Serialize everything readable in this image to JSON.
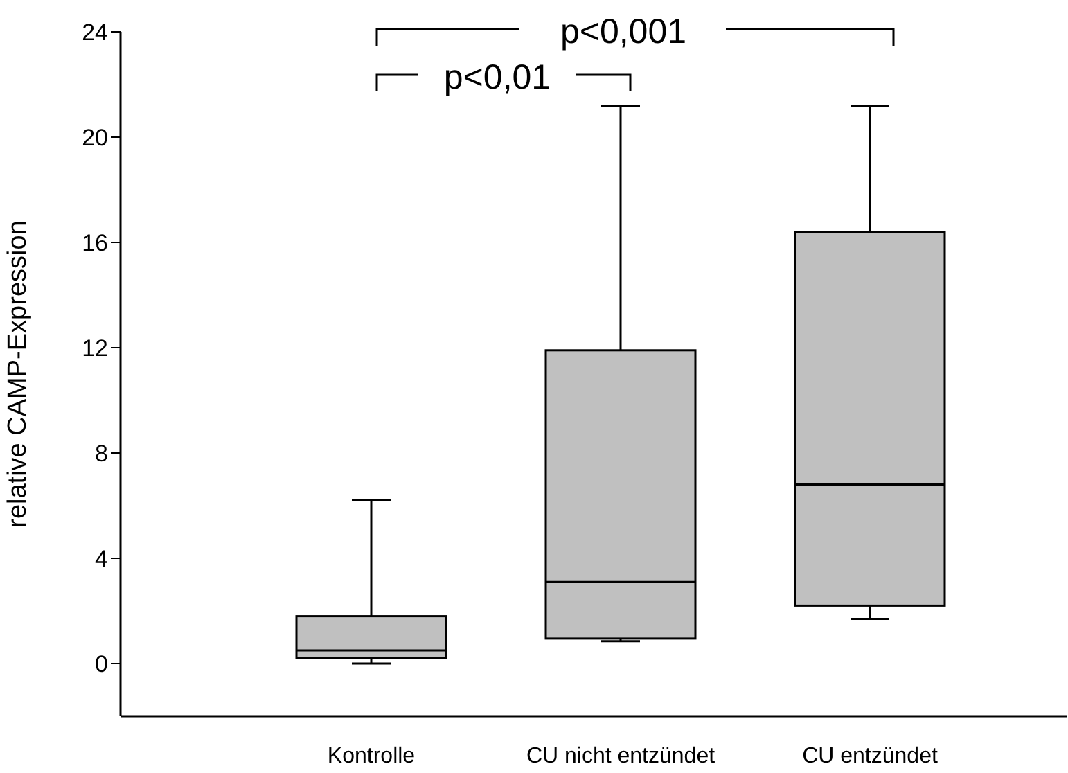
{
  "chart_data": {
    "type": "box",
    "ylabel": "relative CAMP-Expression",
    "categories": [
      "Kontrolle",
      "CU nicht  entzündet",
      "CU entzündet"
    ],
    "color": "#c0c0c0",
    "boxes": [
      {
        "low": 0,
        "q1": 0.2,
        "median": 0.5,
        "q3": 1.8,
        "high": 6.2
      },
      {
        "low": 0.85,
        "q1": 0.95,
        "median": 3.1,
        "q3": 11.9,
        "high": 21.2
      },
      {
        "low": 1.7,
        "q1": 2.2,
        "median": 6.8,
        "q3": 16.4,
        "high": 21.2
      }
    ],
    "ylim": [
      -2,
      24
    ],
    "yticks": [
      0,
      4,
      8,
      12,
      16,
      20,
      24
    ],
    "annotations": [
      "p<0,01",
      "p<0,001"
    ]
  }
}
